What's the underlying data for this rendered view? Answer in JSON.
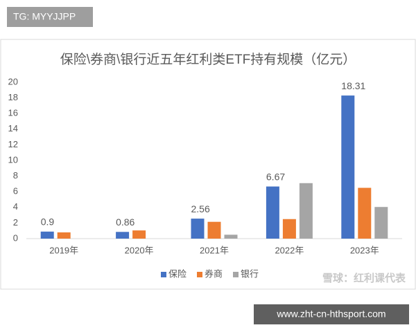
{
  "badge": "TG: MYYJJPP",
  "watermark": "雪球：红利课代表",
  "url": "www.zht-cn-hthsport.com",
  "chart_data": {
    "type": "bar",
    "title": "保险\\券商\\银行近五年红利类ETF持有规模（亿元）",
    "categories": [
      "2019年",
      "2020年",
      "2021年",
      "2022年",
      "2023年"
    ],
    "series": [
      {
        "name": "保险",
        "color": "#4472c4",
        "values": [
          0.9,
          0.86,
          2.56,
          6.67,
          18.31
        ],
        "show_labels": true
      },
      {
        "name": "券商",
        "color": "#ed7d31",
        "values": [
          0.8,
          1.05,
          2.15,
          2.5,
          6.5
        ]
      },
      {
        "name": "银行",
        "color": "#a5a5a5",
        "values": [
          null,
          null,
          0.5,
          7.1,
          4.05
        ]
      }
    ],
    "ylim": [
      0,
      20
    ],
    "yticks": [
      0,
      2,
      4,
      6,
      8,
      10,
      12,
      14,
      16,
      18,
      20
    ],
    "grid": false,
    "legend": "bottom"
  }
}
